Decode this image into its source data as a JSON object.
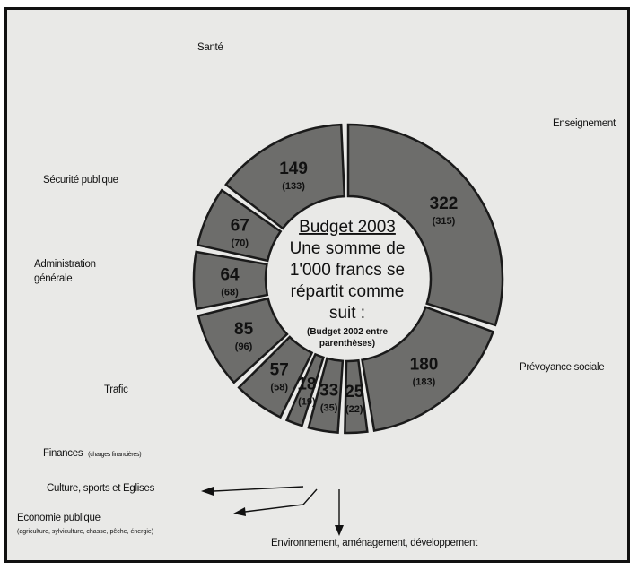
{
  "chart_data": {
    "type": "pie",
    "title": "Budget 2003",
    "subtitle_lines": [
      "Une somme de",
      "1'000 francs se",
      "répartit comme",
      "suit :"
    ],
    "note_lines": [
      "(Budget 2002 entre",
      "parenthèses)"
    ],
    "categories": [
      "Enseignement",
      "Prévoyance sociale",
      "Environnement, aménagement, développement",
      "Economie publique",
      "Culture, sports et Eglises",
      "Finances",
      "Trafic",
      "Administration générale",
      "Sécurité publique",
      "Santé"
    ],
    "series": [
      {
        "values": [
          322,
          180,
          25,
          33,
          18,
          57,
          85,
          64,
          67,
          149
        ]
      },
      {
        "values": [
          315,
          183,
          22,
          35,
          19,
          58,
          96,
          68,
          70,
          133
        ]
      }
    ],
    "labels": {
      "enseignement": "Enseignement",
      "prevoyance": "Prévoyance sociale",
      "environnement": "Environnement, aménagement, développement",
      "economie": "Economie publique",
      "economie_detail": "(agriculture, sylviculture, chasse, pêche, énergie)",
      "culture": "Culture, sports et Eglises",
      "finances": "Finances",
      "finances_detail": "(charges financières)",
      "trafic": "Trafic",
      "administration_1": "Administration",
      "administration_2": "générale",
      "securite": "Sécurité publique",
      "sante": "Santé"
    },
    "fill_color": "#6d6d6b",
    "background_color": "#e9e9e7"
  }
}
